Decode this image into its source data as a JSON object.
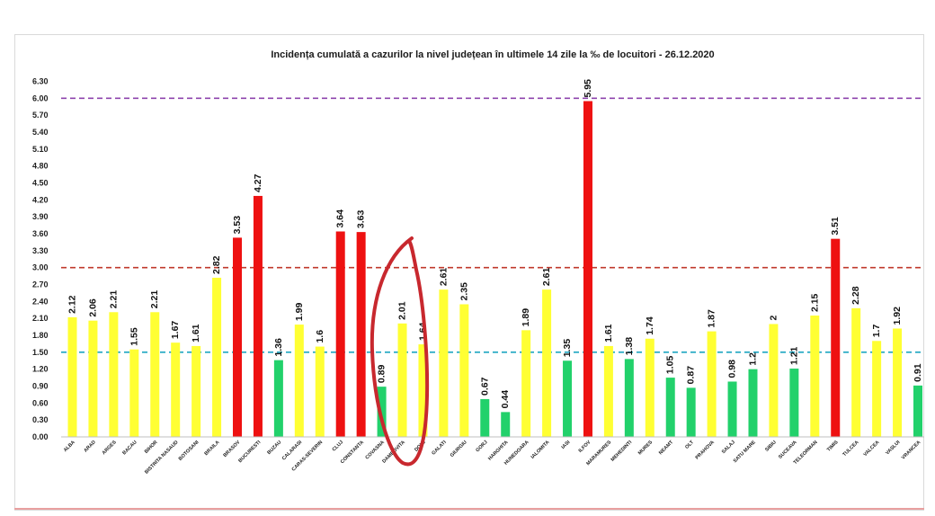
{
  "chart_data": {
    "type": "bar",
    "title": "Incidența cumulată a cazurilor la nivel județean în ultimele 14 zile la ‰ de locuitori - 26.12.2020",
    "xlabel": "",
    "ylabel": "",
    "ylim": [
      0,
      6.3
    ],
    "yticks": [
      "0.00",
      "0.30",
      "0.60",
      "0.90",
      "1.20",
      "1.50",
      "1.80",
      "2.10",
      "2.40",
      "2.70",
      "3.00",
      "3.30",
      "3.60",
      "3.90",
      "4.20",
      "4.50",
      "4.80",
      "5.10",
      "5.40",
      "5.70",
      "6.00",
      "6.30"
    ],
    "grid": false,
    "categories": [
      "ALBA",
      "ARAD",
      "ARGES",
      "BACAU",
      "BIHOR",
      "BISTRITA NASAUD",
      "BOTOSANI",
      "BRAILA",
      "BRASOV",
      "BUCURESTI",
      "BUZAU",
      "CALARASI",
      "CARAS-SEVERIN",
      "CLUJ",
      "CONSTANTA",
      "COVASNA",
      "DAMBOVITA",
      "DOLJ",
      "GALATI",
      "GIURGIU",
      "GORJ",
      "HARGHITA",
      "HUNEDOARA",
      "IALOMITA",
      "IASI",
      "ILFOV",
      "MARAMURES",
      "MEHEDINTI",
      "MURES",
      "NEAMT",
      "OLT",
      "PRAHOVA",
      "SALAJ",
      "SATU MARE",
      "SIBIU",
      "SUCEAVA",
      "TELEORMAN",
      "TIMIS",
      "TULCEA",
      "VALCEA",
      "VASLUI",
      "VRANCEA"
    ],
    "values": [
      2.12,
      2.06,
      2.21,
      1.55,
      2.21,
      1.67,
      1.61,
      2.82,
      3.53,
      4.27,
      1.36,
      1.99,
      1.6,
      3.64,
      3.63,
      0.89,
      2.01,
      1.64,
      2.61,
      2.35,
      0.67,
      0.44,
      1.89,
      2.61,
      1.35,
      5.95,
      1.61,
      1.38,
      1.74,
      1.05,
      0.87,
      1.87,
      0.98,
      1.2,
      2,
      1.21,
      2.15,
      3.51,
      2.28,
      1.7,
      1.92,
      0.91
    ],
    "value_labels": [
      "2.12",
      "2.06",
      "2.21",
      "1.55",
      "2.21",
      "1.67",
      "1.61",
      "2.82",
      "3.53",
      "4.27",
      "1.36",
      "1.99",
      "1.6",
      "3.64",
      "3.63",
      "0.89",
      "2.01",
      "1.64",
      "2.61",
      "2.35",
      "0.67",
      "0.44",
      "1.89",
      "2.61",
      "1.35",
      "5.95",
      "1.61",
      "1.38",
      "1.74",
      "1.05",
      "0.87",
      "1.87",
      "0.98",
      "1.2",
      "2",
      "1.21",
      "2.15",
      "3.51",
      "2.28",
      "1.7",
      "1.92",
      "0.91"
    ],
    "thresholds": [
      {
        "value": 6.0,
        "color": "#8e44ad"
      },
      {
        "value": 3.0,
        "color": "#c0392b"
      },
      {
        "value": 1.5,
        "color": "#1fa6c2"
      }
    ],
    "colors": {
      "green": "#22d16b",
      "yellow": "#ffff33",
      "red": "#ee1111",
      "annotation": "#c8282e"
    }
  }
}
